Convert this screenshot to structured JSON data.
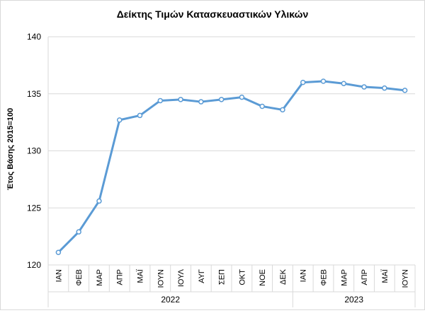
{
  "chart_data": {
    "type": "line",
    "title": "Δείκτης Τιμών Κατασκευαστικών Υλικών",
    "ylabel": "Έτος Βάσης 2015=100",
    "xlabel": "",
    "ylim": [
      120,
      140
    ],
    "yticks": [
      120,
      125,
      130,
      135,
      140
    ],
    "grid": true,
    "legend": "none",
    "line_color": "#5b9bd5",
    "categories": [
      "ΙΑΝ",
      "ΦΕΒ",
      "ΜΑΡ",
      "ΑΠΡ",
      "ΜΑΪ",
      "ΙΟΥΝ",
      "ΙΟΥΛ",
      "ΑΥΓ",
      "ΣΕΠ",
      "ΟΚΤ",
      "ΝΟΕ",
      "ΔΕΚ",
      "ΙΑΝ",
      "ΦΕΒ",
      "ΜΑΡ",
      "ΑΠΡ",
      "ΜΑΪ",
      "ΙΟΥΝ"
    ],
    "groups": [
      {
        "label": "2022",
        "count": 12
      },
      {
        "label": "2023",
        "count": 6
      }
    ],
    "series": [
      {
        "values": [
          121.1,
          122.9,
          125.6,
          132.7,
          133.1,
          134.4,
          134.5,
          134.3,
          134.5,
          134.7,
          133.9,
          133.6,
          136.0,
          136.1,
          135.9,
          135.6,
          135.5,
          135.3
        ]
      }
    ]
  }
}
